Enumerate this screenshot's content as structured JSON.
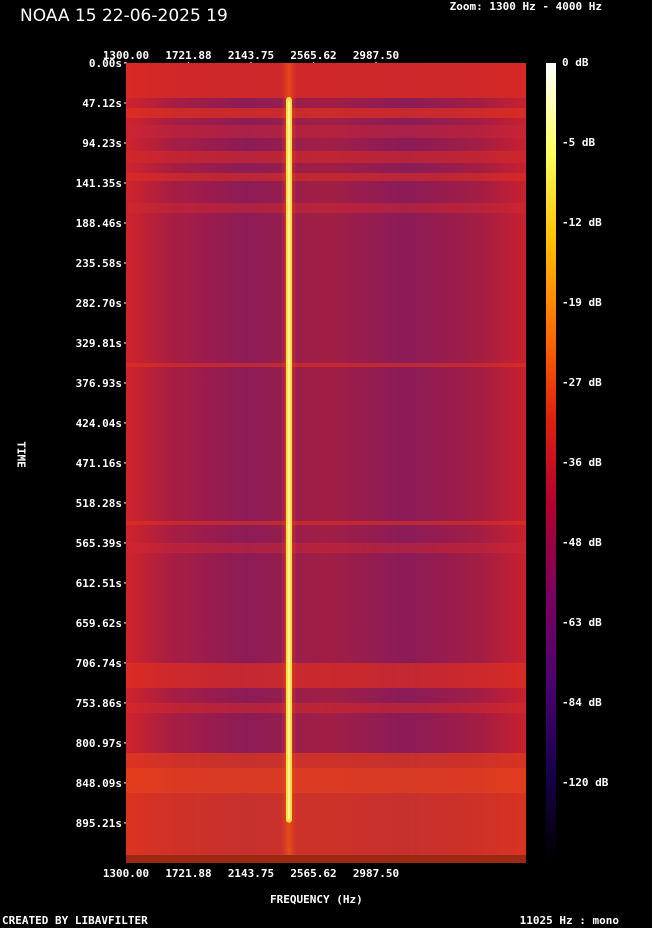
{
  "title": "NOAA 15 22-06-2025 19",
  "zoom_label": "Zoom: 1300 Hz - 4000 Hz",
  "footer": {
    "left": "CREATED BY LIBAVFILTER",
    "right": "11025 Hz : mono"
  },
  "colors": {
    "background": "#000000",
    "plot_base": "#c8202a",
    "signal": "#ffe040"
  },
  "chart_data": {
    "type": "heatmap",
    "xlabel": "FREQUENCY (Hz)",
    "ylabel": "TIME",
    "x_ticks": [
      "1300.00",
      "1721.88",
      "2143.75",
      "2565.62",
      "2987.50"
    ],
    "x_tick_values": [
      1300.0,
      1721.88,
      2143.75,
      2565.62,
      2987.5
    ],
    "xlim": [
      1300,
      4000
    ],
    "y_ticks": [
      "0.00s",
      "47.12s",
      "94.23s",
      "141.35s",
      "188.46s",
      "235.58s",
      "282.70s",
      "329.81s",
      "376.93s",
      "424.04s",
      "471.16s",
      "518.28s",
      "565.39s",
      "612.51s",
      "659.62s",
      "706.74s",
      "753.86s",
      "800.97s",
      "848.09s",
      "895.21s"
    ],
    "ylim": [
      0,
      942.42
    ],
    "colorbar": {
      "labels": [
        "0 dB",
        "-5 dB",
        "-12 dB",
        "-19 dB",
        "-27 dB",
        "-36 dB",
        "-48 dB",
        "-63 dB",
        "-84 dB",
        "-120 dB"
      ],
      "stops": [
        "#ffffff",
        "#ffff60",
        "#ffc000",
        "#ff7000",
        "#e02010",
        "#b00030",
        "#7a0060",
        "#4a0070",
        "#15004a",
        "#000000"
      ]
    },
    "signal": {
      "frequency_hz": 2400,
      "start_s": 40,
      "end_s": 895
    },
    "grid": false,
    "legend": "colorbar-right"
  }
}
